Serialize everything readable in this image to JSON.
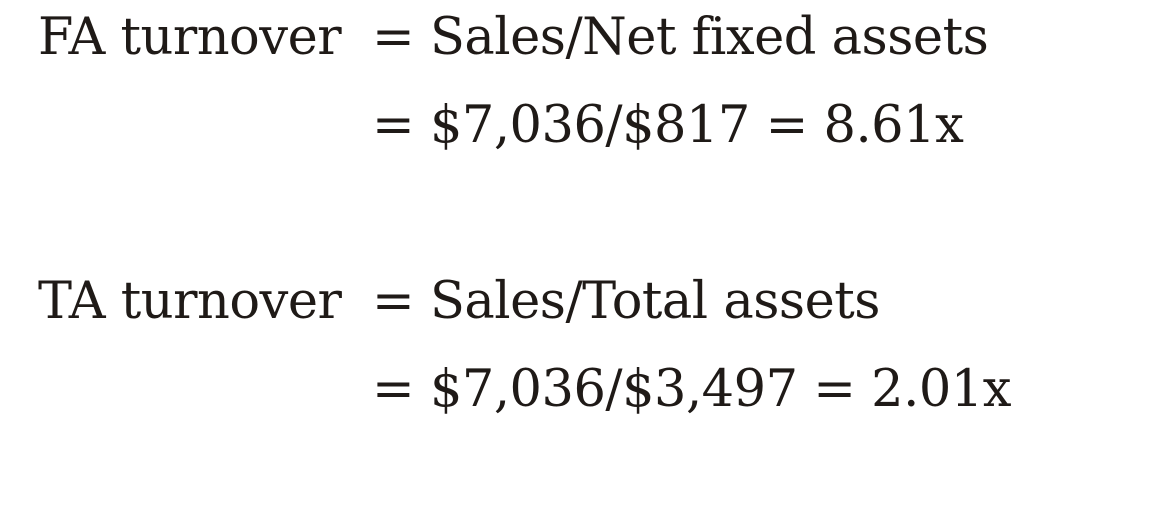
{
  "fa_turnover": {
    "label": "FA turnover",
    "formula": "= Sales/Net fixed assets",
    "calculation": "= $7,036/$817 = 8.61x"
  },
  "ta_turnover": {
    "label": "TA turnover",
    "formula": "= Sales/Total assets",
    "calculation": "= $7,036/$3,497 = 2.01x"
  }
}
